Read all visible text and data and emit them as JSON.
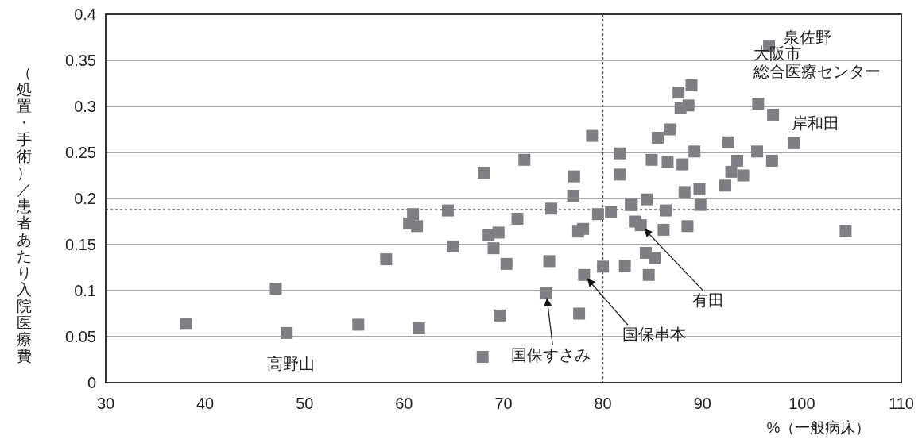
{
  "chart_data": {
    "type": "scatter",
    "xlabel": "%（一般病床）",
    "ylabel": "（処置・手術）／患者あたり入院医療費",
    "xlim": [
      30,
      110
    ],
    "xticks": [
      30,
      40,
      50,
      60,
      70,
      80,
      90,
      100,
      110
    ],
    "ylim": [
      0,
      0.4
    ],
    "yticks": [
      0,
      0.05,
      0.1,
      0.15,
      0.2,
      0.25,
      0.3,
      0.35,
      0.4
    ],
    "grid": "y",
    "marker": "square",
    "ref_lines": [
      {
        "axis": "x",
        "value": 80,
        "line_style": "dashed"
      },
      {
        "axis": "y",
        "value": 0.188,
        "line_style": "dashed"
      }
    ],
    "series": [
      {
        "color": "#7f7f83",
        "x": [
          38.1,
          47.1,
          48.2,
          55.4,
          58.2,
          78.9,
          81.7,
          81.7,
          72.1,
          68.0,
          77.1,
          77.0,
          60.9,
          60.5,
          61.3,
          64.4,
          74.8,
          71.4,
          79.5,
          80.8,
          82.8,
          77.5,
          78.0,
          68.5,
          69.5,
          69.0,
          64.9,
          70.3,
          74.6,
          80.0,
          82.2,
          78.1,
          74.3,
          77.6,
          69.6,
          61.5,
          67.9,
          96.7,
          88.9,
          87.6,
          88.6,
          87.8,
          95.6,
          97.1,
          86.7,
          85.5,
          92.6,
          99.2,
          89.2,
          95.5,
          84.9,
          86.5,
          88.0,
          97.0,
          93.5,
          92.9,
          94.1,
          92.3,
          88.2,
          89.7,
          84.4,
          82.9,
          86.3,
          89.8,
          83.2,
          83.8,
          86.1,
          88.5,
          104.4,
          84.3,
          85.2,
          84.6
        ],
        "values": [
          0.064,
          0.102,
          0.054,
          0.063,
          0.134,
          0.268,
          0.249,
          0.226,
          0.242,
          0.228,
          0.224,
          0.203,
          0.183,
          0.173,
          0.17,
          0.187,
          0.189,
          0.178,
          0.183,
          0.185,
          0.193,
          0.164,
          0.167,
          0.16,
          0.163,
          0.146,
          0.148,
          0.129,
          0.132,
          0.126,
          0.127,
          0.117,
          0.097,
          0.075,
          0.073,
          0.059,
          0.028,
          0.365,
          0.323,
          0.315,
          0.301,
          0.298,
          0.303,
          0.291,
          0.275,
          0.266,
          0.261,
          0.26,
          0.251,
          0.251,
          0.242,
          0.24,
          0.237,
          0.241,
          0.241,
          0.229,
          0.225,
          0.214,
          0.207,
          0.21,
          0.199,
          0.193,
          0.187,
          0.193,
          0.175,
          0.171,
          0.166,
          0.17,
          0.165,
          0.141,
          0.135,
          0.117
        ]
      }
    ],
    "annotations": [
      {
        "text": "高野山",
        "x": 48.2,
        "y": 0.054
      },
      {
        "text": "国保すさみ",
        "x": 74.3,
        "y": 0.097
      },
      {
        "text": "国保串本",
        "x": 78.1,
        "y": 0.117
      },
      {
        "text": "有田",
        "x": 83.8,
        "y": 0.171
      },
      {
        "text": "泉佐野",
        "x": 96.7,
        "y": 0.365
      },
      {
        "text": "大阪市総合医療センター",
        "x": 95.6,
        "y": 0.303
      },
      {
        "text": "岸和田",
        "x": 97.1,
        "y": 0.291
      }
    ]
  }
}
